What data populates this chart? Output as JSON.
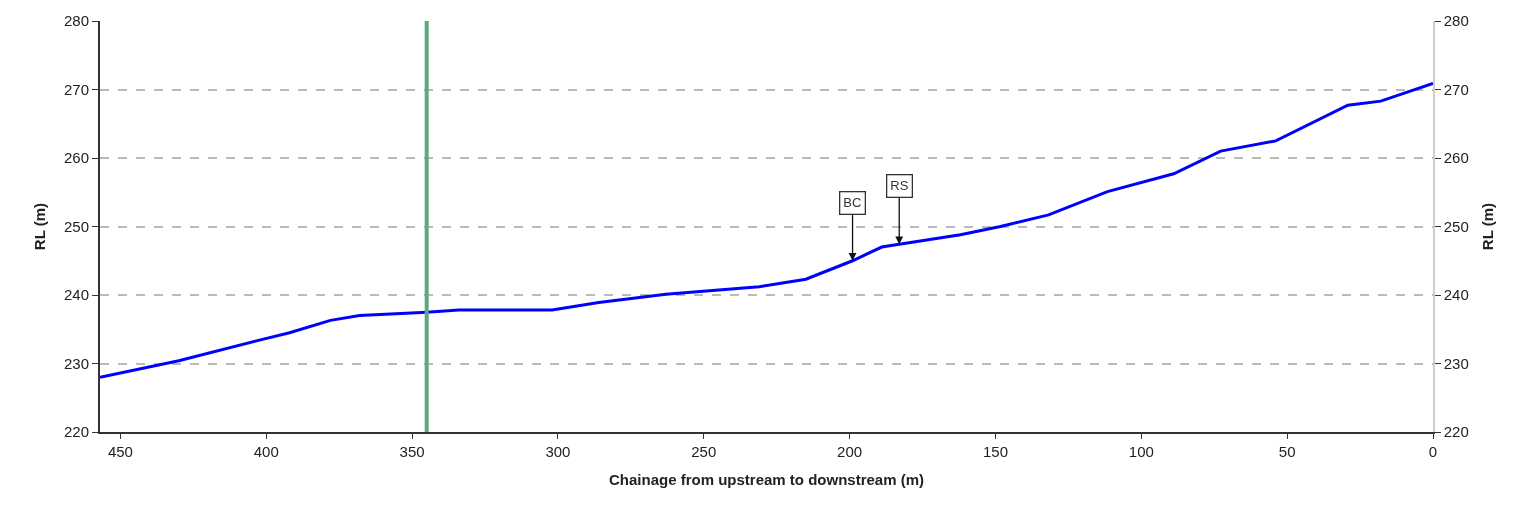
{
  "chart_data": {
    "type": "line",
    "xlabel": "Chainage from upstream to downstream (m)",
    "ylabel": "RL (m)",
    "y2label": "RL (m)",
    "x": [
      457,
      430,
      400.6,
      392,
      378,
      368,
      345,
      334,
      302,
      286,
      263,
      231,
      215,
      199,
      189,
      183,
      162,
      148.3,
      131.8,
      111.6,
      88.9,
      72.8,
      53.9,
      29.2,
      17.9,
      0
    ],
    "series": [
      {
        "color": "#0000ff",
        "values": [
          228.0,
          230.4,
          233.6,
          234.5,
          236.3,
          237.0,
          237.5,
          237.8,
          237.8,
          238.9,
          240.1,
          241.2,
          242.3,
          245.0,
          247.0,
          247.4,
          248.8,
          250.0,
          251.7,
          255.1,
          257.7,
          261.0,
          262.5,
          267.7,
          268.3,
          270.9
        ]
      }
    ],
    "xlim": [
      457,
      0
    ],
    "xticks": [
      450,
      400,
      350,
      300,
      250,
      200,
      150,
      100,
      50,
      0
    ],
    "ylim": [
      220,
      280
    ],
    "yticks": [
      220,
      230,
      240,
      250,
      260,
      270,
      280
    ],
    "y2lim": [
      220,
      280
    ],
    "y2ticks": [
      220,
      230,
      240,
      250,
      260,
      270,
      280
    ],
    "ref_lines": [
      {
        "axis": "x",
        "value": 345,
        "color": "#5aaa7a"
      }
    ],
    "annotations": [
      {
        "text": "BC",
        "x": 199,
        "y": 245.0
      },
      {
        "text": "RS",
        "x": 183,
        "y": 247.4
      }
    ],
    "grid": "y",
    "line_style": "solid",
    "marker": "none"
  }
}
